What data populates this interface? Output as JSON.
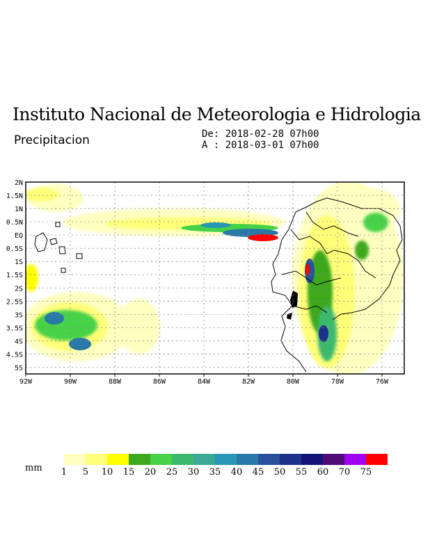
{
  "header": {
    "title": "Instituto Nacional de Meteorologia e Hidrologia",
    "subtitle": "Precipitacion",
    "date_from": "De: 2018-02-28 07h00",
    "date_to": "A : 2018-03-01 07h00"
  },
  "map": {
    "lon_range": [
      -92,
      -75
    ],
    "lat_range": [
      -5.25,
      2
    ],
    "lon_ticks": [
      "92W",
      "90W",
      "88W",
      "86W",
      "84W",
      "82W",
      "80W",
      "78W",
      "76W"
    ],
    "lat_ticks": [
      "2N",
      "1.5N",
      "1N",
      "0.5N",
      "EQ",
      "0.5S",
      "1S",
      "1.5S",
      "2S",
      "2.5S",
      "3S",
      "3.5S",
      "4S",
      "4.5S",
      "5S"
    ],
    "grid": "dotted"
  },
  "colorbar": {
    "unit": "mm",
    "ticks": [
      "1",
      "5",
      "10",
      "15",
      "20",
      "25",
      "30",
      "35",
      "40",
      "45",
      "50",
      "55",
      "60",
      "70",
      "75"
    ],
    "colors": [
      "#ffffc0",
      "#ffff78",
      "#ffff00",
      "#3ca81e",
      "#46d246",
      "#3cb96e",
      "#3ca896",
      "#2896b4",
      "#2878a8",
      "#28509b",
      "#1e328c",
      "#141478",
      "#500a78",
      "#a000f0",
      "#ff0000"
    ]
  }
}
